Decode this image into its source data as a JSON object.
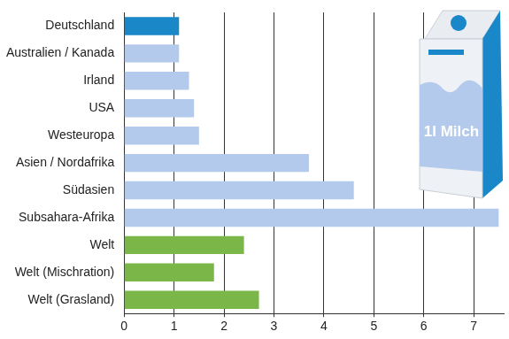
{
  "chart_data": {
    "type": "bar",
    "orientation": "horizontal",
    "categories": [
      "Deutschland",
      "Australien / Kanada",
      "Irland",
      "USA",
      "Westeuropa",
      "Asien / Nordafrika",
      "Südasien",
      "Subsahara-Afrika",
      "Welt",
      "Welt (Mischration)",
      "Welt (Grasland)"
    ],
    "values": [
      1.1,
      1.1,
      1.3,
      1.4,
      1.5,
      3.7,
      4.6,
      7.5,
      2.4,
      1.8,
      2.7
    ],
    "colors": [
      "#1a87c9",
      "#b4caec",
      "#b4caec",
      "#b4caec",
      "#b4caec",
      "#b4caec",
      "#b4caec",
      "#b4caec",
      "#7ab648",
      "#7ab648",
      "#7ab648"
    ],
    "xlim": [
      0,
      7.6
    ],
    "xticks": [
      0,
      1,
      2,
      3,
      4,
      5,
      6,
      7
    ],
    "grid": true,
    "annotations": [
      "1l Milch"
    ]
  }
}
